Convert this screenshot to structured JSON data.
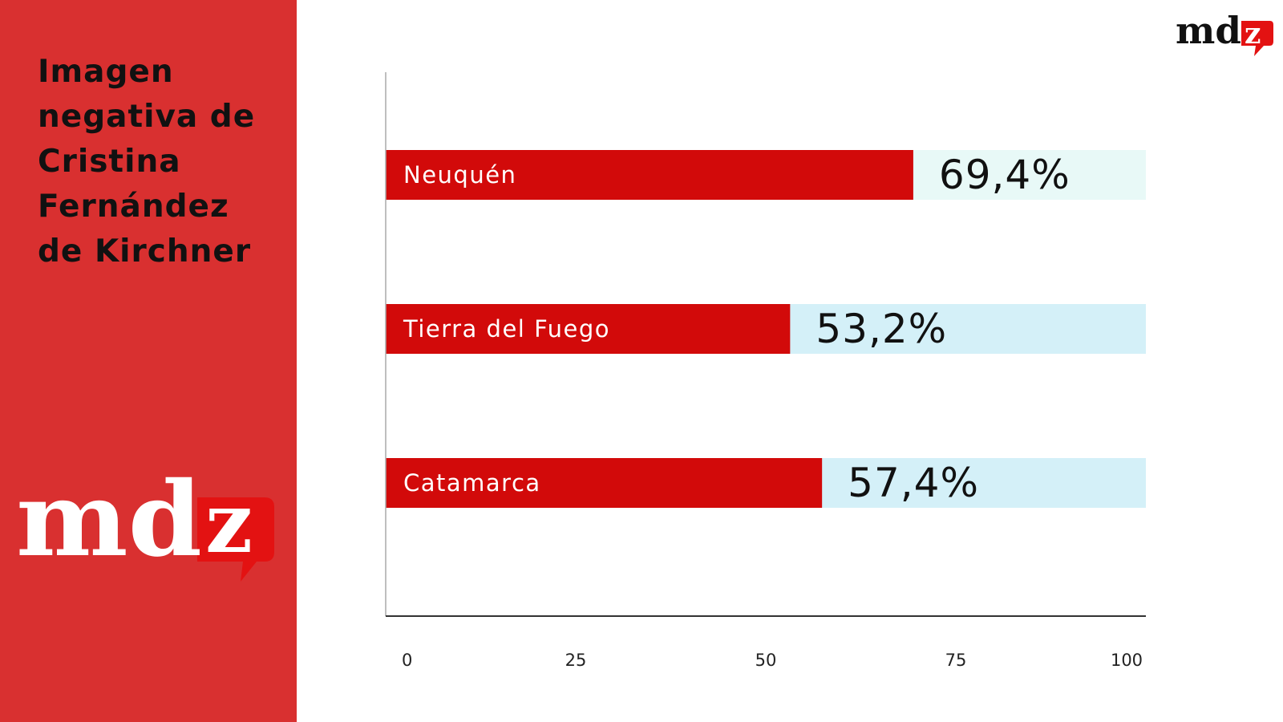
{
  "sidebar": {
    "title_lines": [
      "Imagen",
      "negativa de",
      "Cristina",
      "Fernández",
      "de Kirchner"
    ],
    "background_color": "#d93030"
  },
  "brand": {
    "wordmark": "mdz",
    "accent_color": "#e31212"
  },
  "chart_data": {
    "type": "bar",
    "orientation": "horizontal",
    "categories": [
      "Neuquén",
      "Tierra del Fuego",
      "Catamarca"
    ],
    "values": [
      69.4,
      53.2,
      57.4
    ],
    "value_labels": [
      "69,4%",
      "53,2%",
      "57,4%"
    ],
    "xlim": [
      0,
      100
    ],
    "x_ticks": [
      "0",
      "25",
      "50",
      "75",
      "100"
    ],
    "grid": false,
    "legend": "none",
    "bar_color": "#d20a0a",
    "track_colors": [
      "#e8f9f7",
      "#d4f0f8",
      "#d4f0f8"
    ]
  }
}
